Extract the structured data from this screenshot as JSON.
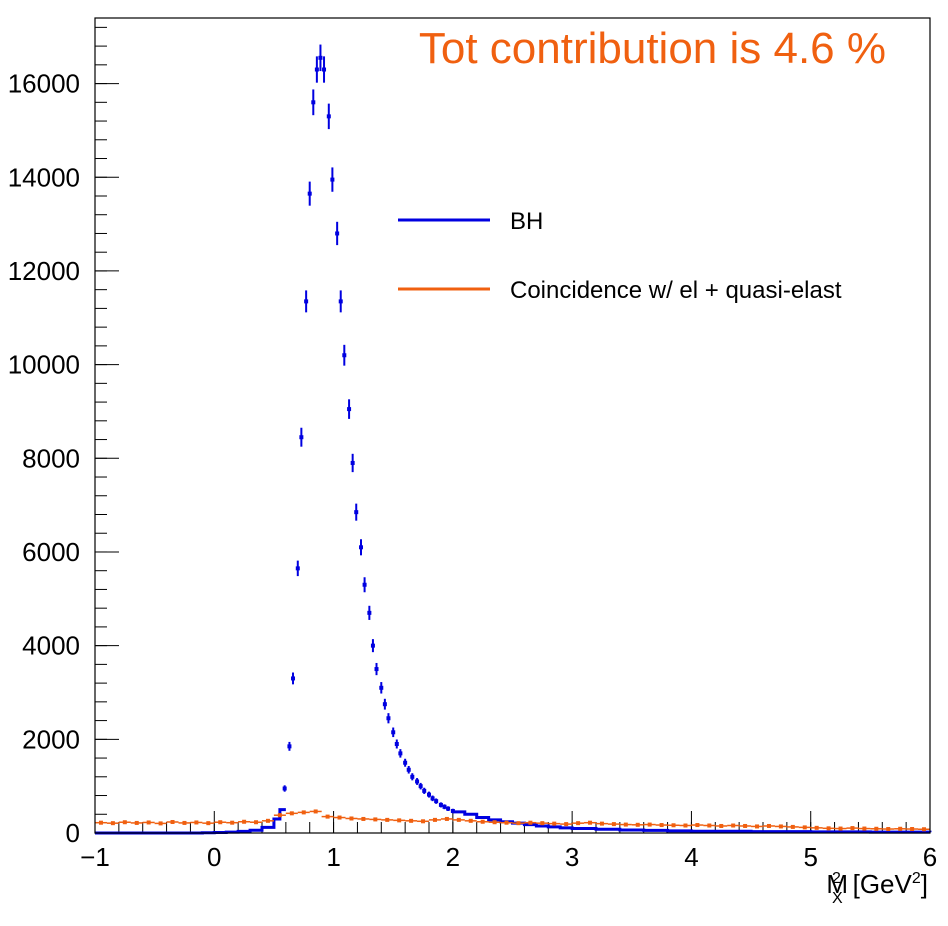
{
  "chart_data": {
    "type": "scatter",
    "annotation": "Tot contribution is 4.6 %",
    "xlabel": "M",
    "xlabel_sub": "X",
    "xlabel_sup": "2",
    "xlabel_unit_open": "[GeV",
    "xlabel_unit_sup": "2",
    "xlabel_unit_close": "]",
    "ylabel": "",
    "xlim": [
      -1,
      6
    ],
    "ylim": [
      0,
      17400
    ],
    "x_ticks": [
      "−1",
      "0",
      "1",
      "2",
      "3",
      "4",
      "5",
      "6"
    ],
    "x_tick_values": [
      -1,
      0,
      1,
      2,
      3,
      4,
      5,
      6
    ],
    "y_ticks": [
      "0",
      "2000",
      "4000",
      "6000",
      "8000",
      "10000",
      "12000",
      "14000",
      "16000"
    ],
    "y_tick_values": [
      0,
      2000,
      4000,
      6000,
      8000,
      10000,
      12000,
      14000,
      16000
    ],
    "legend_position": "center",
    "grid": false,
    "colors": {
      "bh": "#0000e0",
      "coincidence": "#f06010",
      "annotation": "#f06010"
    },
    "series": [
      {
        "name": "BH",
        "bins": [
          [
            -1.0,
            0
          ],
          [
            -0.9,
            0
          ],
          [
            -0.8,
            0
          ],
          [
            -0.7,
            0
          ],
          [
            -0.6,
            0
          ],
          [
            -0.5,
            0
          ],
          [
            -0.4,
            0
          ],
          [
            -0.3,
            0
          ],
          [
            -0.2,
            0
          ],
          [
            -0.1,
            5
          ],
          [
            0.0,
            10
          ],
          [
            0.1,
            20
          ],
          [
            0.2,
            35
          ],
          [
            0.3,
            60
          ],
          [
            0.4,
            120
          ],
          [
            0.5,
            300
          ],
          [
            0.55,
            500
          ]
        ],
        "points": [
          [
            0.59,
            950
          ],
          [
            0.63,
            1850
          ],
          [
            0.66,
            3300
          ],
          [
            0.7,
            5650
          ],
          [
            0.73,
            8450
          ],
          [
            0.77,
            11350
          ],
          [
            0.8,
            13650
          ],
          [
            0.83,
            15600
          ],
          [
            0.86,
            16300
          ],
          [
            0.89,
            16550
          ],
          [
            0.92,
            16300
          ],
          [
            0.96,
            15300
          ],
          [
            0.99,
            13950
          ],
          [
            1.03,
            12800
          ],
          [
            1.06,
            11350
          ],
          [
            1.09,
            10200
          ],
          [
            1.13,
            9050
          ],
          [
            1.16,
            7900
          ],
          [
            1.19,
            6850
          ],
          [
            1.23,
            6100
          ],
          [
            1.26,
            5300
          ],
          [
            1.3,
            4700
          ],
          [
            1.33,
            4000
          ],
          [
            1.36,
            3500
          ],
          [
            1.4,
            3100
          ],
          [
            1.43,
            2750
          ],
          [
            1.46,
            2450
          ],
          [
            1.5,
            2150
          ],
          [
            1.53,
            1900
          ],
          [
            1.56,
            1700
          ],
          [
            1.6,
            1500
          ],
          [
            1.63,
            1350
          ],
          [
            1.66,
            1200
          ],
          [
            1.7,
            1100
          ],
          [
            1.73,
            1000
          ],
          [
            1.76,
            900
          ],
          [
            1.8,
            820
          ],
          [
            1.83,
            740
          ],
          [
            1.86,
            680
          ],
          [
            1.9,
            600
          ],
          [
            1.93,
            560
          ],
          [
            1.96,
            520
          ],
          [
            2.0,
            470
          ]
        ],
        "tail": [
          [
            2.0,
            450
          ],
          [
            2.1,
            400
          ],
          [
            2.2,
            330
          ],
          [
            2.3,
            280
          ],
          [
            2.4,
            240
          ],
          [
            2.5,
            210
          ],
          [
            2.6,
            180
          ],
          [
            2.7,
            150
          ],
          [
            2.8,
            130
          ],
          [
            2.9,
            110
          ],
          [
            3.0,
            95
          ],
          [
            3.2,
            80
          ],
          [
            3.4,
            65
          ],
          [
            3.6,
            55
          ],
          [
            3.8,
            45
          ],
          [
            4.0,
            38
          ],
          [
            4.5,
            30
          ],
          [
            5.0,
            25
          ],
          [
            5.5,
            20
          ],
          [
            6.0,
            15
          ]
        ]
      },
      {
        "name": "Coincidence w/ el + quasi-elast",
        "points": [
          [
            -0.95,
            220
          ],
          [
            -0.85,
            210
          ],
          [
            -0.75,
            230
          ],
          [
            -0.65,
            215
          ],
          [
            -0.55,
            225
          ],
          [
            -0.45,
            205
          ],
          [
            -0.35,
            235
          ],
          [
            -0.25,
            215
          ],
          [
            -0.15,
            225
          ],
          [
            -0.05,
            210
          ],
          [
            0.05,
            230
          ],
          [
            0.15,
            220
          ],
          [
            0.25,
            240
          ],
          [
            0.35,
            230
          ],
          [
            0.45,
            260
          ],
          [
            0.55,
            380
          ],
          [
            0.65,
            420
          ],
          [
            0.75,
            440
          ],
          [
            0.85,
            460
          ],
          [
            0.95,
            350
          ],
          [
            1.05,
            330
          ],
          [
            1.15,
            310
          ],
          [
            1.25,
            300
          ],
          [
            1.35,
            290
          ],
          [
            1.45,
            280
          ],
          [
            1.55,
            270
          ],
          [
            1.65,
            260
          ],
          [
            1.75,
            250
          ],
          [
            1.85,
            280
          ],
          [
            1.95,
            300
          ],
          [
            2.05,
            280
          ],
          [
            2.15,
            260
          ],
          [
            2.25,
            240
          ],
          [
            2.35,
            230
          ],
          [
            2.45,
            220
          ],
          [
            2.55,
            210
          ],
          [
            2.65,
            220
          ],
          [
            2.75,
            210
          ],
          [
            2.85,
            200
          ],
          [
            2.95,
            190
          ],
          [
            3.05,
            210
          ],
          [
            3.15,
            220
          ],
          [
            3.25,
            200
          ],
          [
            3.35,
            190
          ],
          [
            3.45,
            180
          ],
          [
            3.55,
            175
          ],
          [
            3.65,
            180
          ],
          [
            3.75,
            170
          ],
          [
            3.85,
            165
          ],
          [
            3.95,
            160
          ],
          [
            4.05,
            170
          ],
          [
            4.15,
            160
          ],
          [
            4.25,
            150
          ],
          [
            4.35,
            160
          ],
          [
            4.45,
            150
          ],
          [
            4.55,
            140
          ],
          [
            4.65,
            150
          ],
          [
            4.75,
            140
          ],
          [
            4.85,
            130
          ],
          [
            4.95,
            120
          ],
          [
            5.05,
            110
          ],
          [
            5.15,
            100
          ],
          [
            5.25,
            95
          ],
          [
            5.35,
            105
          ],
          [
            5.45,
            95
          ],
          [
            5.55,
            90
          ],
          [
            5.65,
            85
          ],
          [
            5.75,
            90
          ],
          [
            5.85,
            85
          ],
          [
            5.95,
            80
          ]
        ]
      }
    ]
  }
}
